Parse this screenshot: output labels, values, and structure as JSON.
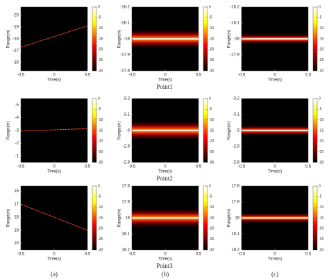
{
  "chart_data": [
    {
      "type": "heatmap",
      "ylabel": "Range(m)",
      "xlabel": "Time(s)",
      "xlim": [
        -0.5,
        0.5
      ],
      "xticks": [
        -0.5,
        0,
        0.5
      ],
      "ylim": [
        -20.7,
        -15.3
      ],
      "yticks": [
        -20,
        -19,
        -18,
        -17,
        -16
      ],
      "clim": [
        -30,
        0
      ],
      "cticks": [
        0,
        -5,
        -10,
        -15,
        -20,
        -25,
        -30
      ],
      "x": [
        -0.5,
        0.5
      ],
      "y": [
        -17.3,
        -19.1
      ],
      "color": "#ff4a1a"
    },
    {
      "type": "heatmap",
      "ylabel": "Range(m)",
      "xlabel": "Time(s)",
      "xlim": [
        -0.5,
        0.5
      ],
      "xticks": [
        -0.5,
        0,
        0.5
      ],
      "ylim": [
        -18.2,
        -17.8
      ],
      "yticks": [
        -18.2,
        -18.1,
        -18,
        -17.9,
        -17.8
      ],
      "clim": [
        -30,
        0
      ],
      "cticks": [
        0,
        -5,
        -10,
        -15,
        -20,
        -25,
        -30
      ],
      "x": [
        -0.5,
        0.5
      ],
      "y": [
        -18,
        -18
      ],
      "color": "#ffffff"
    },
    {
      "type": "heatmap",
      "ylabel": "Range(m)",
      "xlabel": "Time(s)",
      "xlim": [
        -0.5,
        0.5
      ],
      "xticks": [
        -0.5,
        0,
        0.5
      ],
      "ylim": [
        -18.2,
        -17.8
      ],
      "yticks": [
        -18.2,
        -18.1,
        -18,
        -17.9
      ],
      "clim": [
        -30,
        0
      ],
      "cticks": [
        0,
        -5,
        -10,
        -15,
        -20,
        -25,
        -30
      ],
      "x": [
        -0.5,
        0.5
      ],
      "y": [
        -18,
        -18
      ],
      "color": "#ffffff"
    },
    {
      "type": "heatmap",
      "ylabel": "Range(m)",
      "xlabel": "Time(s)",
      "xlim": [
        -0.5,
        0.5
      ],
      "xticks": [
        -0.5,
        0,
        0.5
      ],
      "ylim": [
        -5.5,
        -0.5
      ],
      "yticks": [
        -5,
        -4,
        -3,
        -2,
        -1
      ],
      "clim": [
        -30,
        0
      ],
      "cticks": [
        0,
        -5,
        -10,
        -15,
        -20,
        -25,
        -30
      ],
      "x": [
        -0.5,
        0.5
      ],
      "y": [
        -2.95,
        -3.15
      ],
      "color": "#ff4a1a"
    },
    {
      "type": "heatmap",
      "ylabel": "Range(m)",
      "xlabel": "Time(s)",
      "xlim": [
        -0.5,
        0.5
      ],
      "xticks": [
        -0.5,
        0,
        0.5
      ],
      "ylim": [
        -3.2,
        -2.8
      ],
      "yticks": [
        -3.2,
        -3.1,
        -3,
        -2.9,
        -2.8
      ],
      "clim": [
        -30,
        0
      ],
      "cticks": [
        0,
        -5,
        -10,
        -15,
        -20,
        -25,
        -30
      ],
      "x": [
        -0.5,
        0.5
      ],
      "y": [
        -3,
        -3
      ],
      "color": "#ffffff"
    },
    {
      "type": "heatmap",
      "ylabel": "Range(m)",
      "xlabel": "Time(s)",
      "xlim": [
        -0.5,
        0.5
      ],
      "xticks": [
        -0.5,
        0,
        0.5
      ],
      "ylim": [
        -3.2,
        -2.8
      ],
      "yticks": [
        -3.2,
        -3.1,
        -3,
        -2.9,
        -2.8
      ],
      "clim": [
        -30,
        0
      ],
      "cticks": [
        0,
        -5,
        -10,
        -15,
        -20,
        -25,
        -30
      ],
      "x": [
        -0.5,
        0.5
      ],
      "y": [
        -3,
        -3
      ],
      "color": "#ffffff"
    },
    {
      "type": "heatmap",
      "ylabel": "Range(m)",
      "xlabel": "Time(s)",
      "xlim": [
        -0.5,
        0.5
      ],
      "xticks": [
        -0.5,
        0,
        0.5
      ],
      "ylim": [
        15.6,
        20.5
      ],
      "yticks": [
        16,
        17,
        18,
        19,
        20
      ],
      "clim": [
        -30,
        0
      ],
      "cticks": [
        0,
        -5,
        -10,
        -15,
        -20,
        -25,
        -30
      ],
      "x": [
        -0.5,
        0.5
      ],
      "y": [
        17,
        19
      ],
      "color": "#ff4a1a"
    },
    {
      "type": "heatmap",
      "ylabel": "Range(m)",
      "xlabel": "Time(s)",
      "xlim": [
        -0.5,
        0.5
      ],
      "xticks": [
        -0.5,
        0,
        0.5
      ],
      "ylim": [
        17.8,
        18.2
      ],
      "yticks": [
        17.8,
        17.9,
        18,
        18.1,
        18.2
      ],
      "clim": [
        -30,
        0
      ],
      "cticks": [
        0,
        -5,
        -10,
        -15,
        -20,
        -25,
        -30
      ],
      "x": [
        -0.5,
        0.5
      ],
      "y": [
        18,
        18
      ],
      "color": "#ffffff"
    },
    {
      "type": "heatmap",
      "ylabel": "Range(m)",
      "xlabel": "Time(s)",
      "xlim": [
        -0.5,
        0.5
      ],
      "xticks": [
        -0.5,
        0,
        0.5
      ],
      "ylim": [
        17.8,
        18.2
      ],
      "yticks": [
        17.8,
        17.9,
        18,
        18.1,
        18.2
      ],
      "clim": [
        -30,
        0
      ],
      "cticks": [
        0,
        -5,
        -10,
        -15,
        -20,
        -25,
        -30
      ],
      "x": [
        -0.5,
        0.5
      ],
      "y": [
        18,
        18
      ],
      "color": "#ffffff"
    }
  ],
  "row_captions": [
    "Point1",
    "Point2",
    "Point3"
  ],
  "column_captions": [
    "(a)",
    "(b)",
    "(c)"
  ]
}
